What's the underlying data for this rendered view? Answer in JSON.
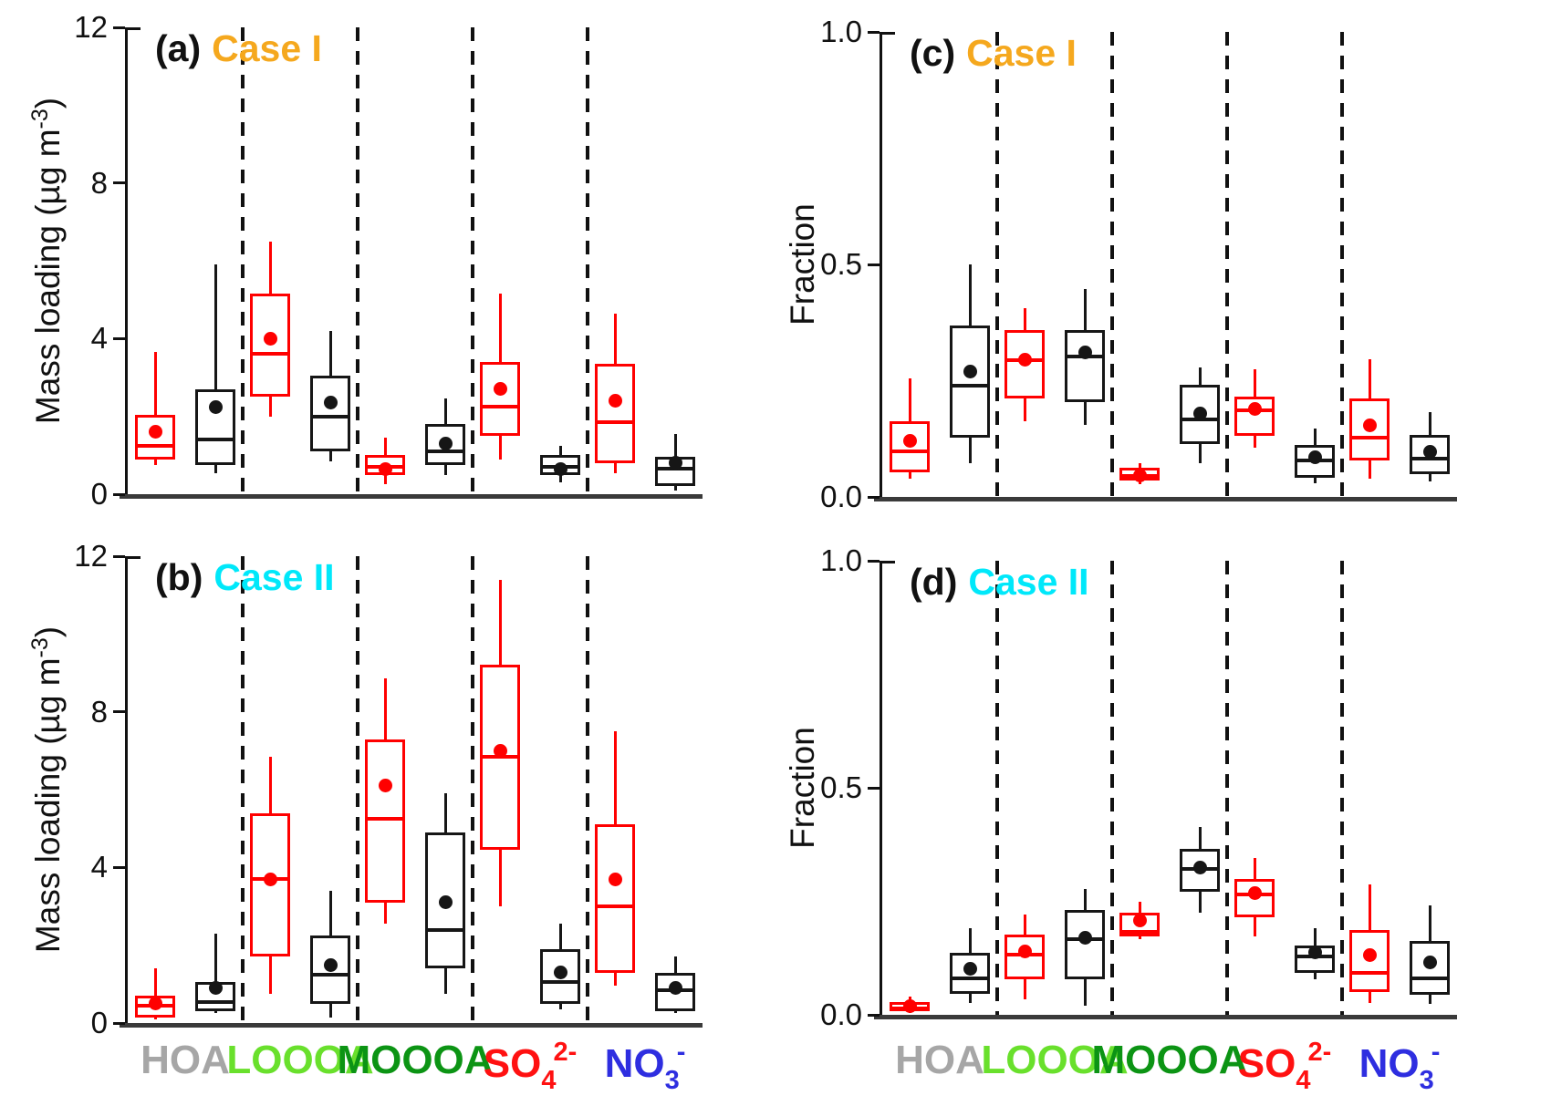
{
  "figure_title": "",
  "chart_data": {
    "type": "grouped_boxplot",
    "layout": {
      "grid": "off",
      "panels_grid": "2x2",
      "group_separators": "vertical dashed lines between categories",
      "box_order_in_group": [
        "red",
        "black"
      ],
      "whisker_caps": false,
      "mean_marker": "filled circle"
    },
    "series_colors": {
      "red": "#ff0000",
      "black": "#161616"
    },
    "axis_color": "#111111",
    "box_value_keys": [
      "whisker_low",
      "q1",
      "median",
      "q3",
      "whisker_high",
      "mean"
    ],
    "categories": [
      {
        "key": "HOA",
        "main": "HOA",
        "sub": "",
        "sup": "",
        "color": "#a6a6a6"
      },
      {
        "key": "LOOOA",
        "main": "LOOOA",
        "sub": "",
        "sup": "",
        "color": "#69e02c"
      },
      {
        "key": "MOOOA",
        "main": "MOOOA",
        "sub": "",
        "sup": "",
        "color": "#0c9414"
      },
      {
        "key": "SO4",
        "main": "SO",
        "sub": "4",
        "sup": "2-",
        "color": "#ff1111"
      },
      {
        "key": "NO3",
        "main": "NO",
        "sub": "3",
        "sup": "-",
        "color": "#2e2ee0"
      }
    ],
    "panels": [
      {
        "id": "a",
        "tag": "(a)",
        "case_label": "Case I",
        "case_color": "#f5a81e",
        "ylabel_main": "Mass loading (µg m",
        "ylabel_sup": "-3",
        "ylabel_end": ")",
        "ylim": [
          0,
          12
        ],
        "yticks": [
          {
            "v": 0,
            "label": "0"
          },
          {
            "v": 4,
            "label": "4"
          },
          {
            "v": 8,
            "label": "8"
          },
          {
            "v": 12,
            "label": "12"
          }
        ],
        "groups": [
          {
            "category": "HOA",
            "red": [
              0.75,
              0.9,
              1.25,
              2.05,
              3.65,
              1.6
            ],
            "black": [
              0.55,
              0.75,
              1.4,
              2.7,
              5.9,
              2.25
            ]
          },
          {
            "category": "LOOOA",
            "red": [
              2.0,
              2.5,
              3.6,
              5.15,
              6.5,
              4.0
            ],
            "black": [
              0.85,
              1.1,
              2.0,
              3.05,
              4.2,
              2.35
            ]
          },
          {
            "category": "MOOOA",
            "red": [
              0.25,
              0.5,
              0.7,
              1.0,
              1.45,
              0.65
            ],
            "black": [
              0.5,
              0.75,
              1.1,
              1.8,
              2.45,
              1.3
            ]
          },
          {
            "category": "SO4",
            "red": [
              0.9,
              1.5,
              2.25,
              3.4,
              5.15,
              2.7
            ],
            "black": [
              0.3,
              0.5,
              0.7,
              1.0,
              1.25,
              0.65
            ]
          },
          {
            "category": "NO3",
            "red": [
              0.55,
              0.8,
              1.85,
              3.35,
              4.65,
              2.4
            ],
            "black": [
              0.1,
              0.2,
              0.65,
              0.95,
              1.55,
              0.8
            ]
          }
        ]
      },
      {
        "id": "b",
        "tag": "(b)",
        "case_label": "Case II",
        "case_color": "#00e8fa",
        "ylabel_main": "Mass loading (µg m",
        "ylabel_sup": "-3",
        "ylabel_end": ")",
        "ylim": [
          0,
          12
        ],
        "yticks": [
          {
            "v": 0,
            "label": "0"
          },
          {
            "v": 4,
            "label": "4"
          },
          {
            "v": 8,
            "label": "8"
          },
          {
            "v": 12,
            "label": "12"
          }
        ],
        "groups": [
          {
            "category": "HOA",
            "red": [
              0.1,
              0.15,
              0.45,
              0.7,
              1.4,
              0.5
            ],
            "black": [
              0.25,
              0.3,
              0.55,
              1.05,
              2.3,
              0.9
            ]
          },
          {
            "category": "LOOOA",
            "red": [
              0.75,
              1.7,
              3.7,
              5.4,
              6.85,
              3.7
            ],
            "black": [
              0.15,
              0.5,
              1.25,
              2.25,
              3.4,
              1.5
            ]
          },
          {
            "category": "MOOOA",
            "red": [
              2.55,
              3.1,
              5.25,
              7.3,
              8.85,
              6.1
            ],
            "black": [
              0.75,
              1.4,
              2.4,
              4.9,
              5.9,
              3.1
            ]
          },
          {
            "category": "SO4",
            "red": [
              3.0,
              4.45,
              6.85,
              9.2,
              11.4,
              7.0
            ],
            "black": [
              0.35,
              0.5,
              1.05,
              1.9,
              2.55,
              1.3
            ]
          },
          {
            "category": "NO3",
            "red": [
              0.95,
              1.3,
              3.0,
              5.1,
              7.5,
              3.7
            ],
            "black": [
              0.25,
              0.3,
              0.85,
              1.3,
              1.7,
              0.9
            ]
          }
        ]
      },
      {
        "id": "c",
        "tag": "(c)",
        "case_label": "Case I",
        "case_color": "#f5a81e",
        "ylabel_main": "Fraction",
        "ylabel_sup": "",
        "ylabel_end": "",
        "ylim": [
          0,
          1
        ],
        "yticks": [
          {
            "v": 0,
            "label": "0.0"
          },
          {
            "v": 0.5,
            "label": "0.5"
          },
          {
            "v": 1,
            "label": "1.0"
          }
        ],
        "groups": [
          {
            "category": "HOA",
            "red": [
              0.04,
              0.052,
              0.098,
              0.163,
              0.255,
              0.12
            ],
            "black": [
              0.072,
              0.127,
              0.239,
              0.369,
              0.5,
              0.27
            ]
          },
          {
            "category": "LOOOA",
            "red": [
              0.163,
              0.212,
              0.294,
              0.359,
              0.405,
              0.295
            ],
            "black": [
              0.154,
              0.203,
              0.301,
              0.359,
              0.448,
              0.31
            ]
          },
          {
            "category": "MOOOA",
            "red": [
              0.028,
              0.035,
              0.046,
              0.062,
              0.072,
              0.046
            ],
            "black": [
              0.072,
              0.114,
              0.167,
              0.242,
              0.278,
              0.18
            ]
          },
          {
            "category": "SO4",
            "red": [
              0.105,
              0.131,
              0.186,
              0.216,
              0.275,
              0.19
            ],
            "black": [
              0.029,
              0.042,
              0.078,
              0.111,
              0.147,
              0.085
            ]
          },
          {
            "category": "NO3",
            "red": [
              0.039,
              0.078,
              0.127,
              0.212,
              0.297,
              0.154
            ],
            "black": [
              0.033,
              0.049,
              0.082,
              0.134,
              0.183,
              0.098
            ]
          }
        ]
      },
      {
        "id": "d",
        "tag": "(d)",
        "case_label": "Case II",
        "case_color": "#00e8fa",
        "ylabel_main": "Fraction",
        "ylabel_sup": "",
        "ylabel_end": "",
        "ylim": [
          0,
          1
        ],
        "yticks": [
          {
            "v": 0,
            "label": "0.0"
          },
          {
            "v": 0.5,
            "label": "0.5"
          },
          {
            "v": 1,
            "label": "1.0"
          }
        ],
        "groups": [
          {
            "category": "HOA",
            "red": [
              0.004,
              0.008,
              0.015,
              0.028,
              0.04,
              0.02
            ],
            "black": [
              0.027,
              0.047,
              0.081,
              0.136,
              0.19,
              0.102
            ]
          },
          {
            "category": "LOOOA",
            "red": [
              0.034,
              0.078,
              0.132,
              0.176,
              0.22,
              0.14
            ],
            "black": [
              0.02,
              0.078,
              0.166,
              0.231,
              0.278,
              0.17
            ]
          },
          {
            "category": "MOOOA",
            "red": [
              0.166,
              0.172,
              0.182,
              0.224,
              0.248,
              0.207
            ],
            "black": [
              0.224,
              0.271,
              0.322,
              0.366,
              0.414,
              0.325
            ]
          },
          {
            "category": "SO4",
            "red": [
              0.173,
              0.214,
              0.265,
              0.299,
              0.346,
              0.268
            ],
            "black": [
              0.078,
              0.092,
              0.129,
              0.153,
              0.19,
              0.138
            ]
          },
          {
            "category": "NO3",
            "red": [
              0.027,
              0.051,
              0.092,
              0.187,
              0.288,
              0.132
            ],
            "black": [
              0.024,
              0.044,
              0.081,
              0.163,
              0.241,
              0.115
            ]
          }
        ]
      }
    ]
  }
}
